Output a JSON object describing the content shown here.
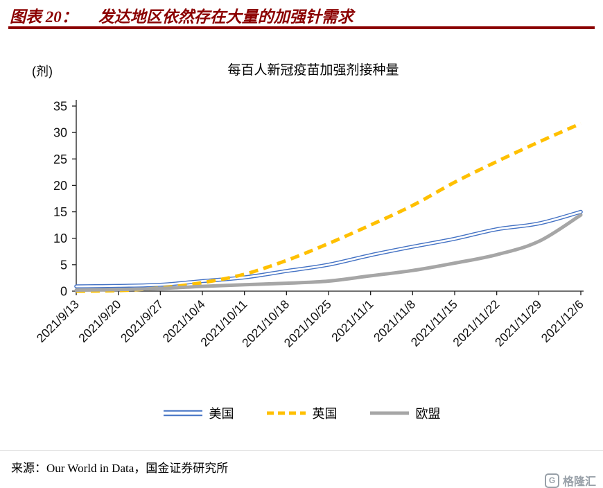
{
  "header": {
    "label": "图表 20：",
    "title": "发达地区依然存在大量的加强针需求",
    "accent_color": "#8B0000"
  },
  "chart_data": {
    "type": "line",
    "title": "每百人新冠疫苗加强剂接种量",
    "unit_label": "(剂)",
    "categories": [
      "2021/9/13",
      "2021/9/20",
      "2021/9/27",
      "2021/10/4",
      "2021/10/11",
      "2021/10/18",
      "2021/10/25",
      "2021/11/1",
      "2021/11/8",
      "2021/11/15",
      "2021/11/22",
      "2021/11/29",
      "2021/12/6"
    ],
    "y_ticks": [
      0,
      5,
      10,
      15,
      20,
      25,
      30,
      35
    ],
    "ylim": [
      0,
      35
    ],
    "grid": false,
    "legend_position": "bottom",
    "series": [
      {
        "key": "us",
        "name": "美国",
        "color": "#4472C4",
        "style": "double",
        "values": [
          0.9,
          1.0,
          1.2,
          1.9,
          2.6,
          3.8,
          5.0,
          6.8,
          8.4,
          9.9,
          11.7,
          12.8,
          15.0
        ]
      },
      {
        "key": "uk",
        "name": "英国",
        "color": "#FFC000",
        "style": "dashed",
        "values": [
          0.0,
          0.1,
          0.6,
          1.6,
          3.2,
          5.8,
          9.0,
          12.5,
          16.2,
          20.6,
          24.5,
          28.2,
          31.7
        ]
      },
      {
        "key": "eu",
        "name": "欧盟",
        "color": "#A6A6A6",
        "style": "solid",
        "values": [
          0.2,
          0.3,
          0.5,
          0.9,
          1.2,
          1.5,
          1.9,
          2.9,
          3.9,
          5.3,
          6.9,
          9.4,
          14.4
        ]
      }
    ]
  },
  "footer": {
    "source": "来源：Our World in Data，国金证券研究所",
    "logo_text": "格隆汇",
    "logo_glyph": "G"
  }
}
